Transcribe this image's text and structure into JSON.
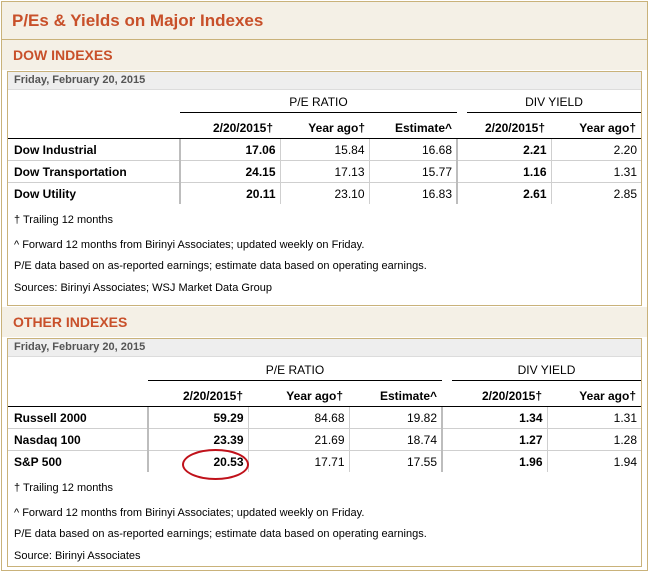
{
  "title": "P/Es & Yields on Major Indexes",
  "dow": {
    "heading": "DOW INDEXES",
    "date": "Friday, February 20, 2015",
    "group_pe": "P/E RATIO",
    "group_div": "DIV YIELD",
    "columns": [
      "2/20/2015†",
      "Year ago†",
      "Estimate^",
      "2/20/2015†",
      "Year ago†"
    ],
    "rows": [
      {
        "name": "Dow Industrial",
        "values": [
          "17.06",
          "15.84",
          "16.68",
          "2.21",
          "2.20"
        ]
      },
      {
        "name": "Dow Transportation",
        "values": [
          "24.15",
          "17.13",
          "15.77",
          "1.16",
          "1.31"
        ]
      },
      {
        "name": "Dow Utility",
        "values": [
          "20.11",
          "23.10",
          "16.83",
          "2.61",
          "2.85"
        ]
      }
    ],
    "notes": [
      "† Trailing 12 months",
      "^ Forward 12 months from Birinyi Associates; updated weekly on Friday.",
      "P/E data based on as-reported earnings; estimate data based on operating earnings.",
      "Sources: Birinyi Associates; WSJ Market Data Group"
    ]
  },
  "other": {
    "heading": "OTHER INDEXES",
    "date": "Friday, February 20, 2015",
    "group_pe": "P/E RATIO",
    "group_div": "DIV YIELD",
    "columns": [
      "2/20/2015†",
      "Year ago†",
      "Estimate^",
      "2/20/2015†",
      "Year ago†"
    ],
    "rows": [
      {
        "name": "Russell 2000",
        "values": [
          "59.29",
          "84.68",
          "19.82",
          "1.34",
          "1.31"
        ]
      },
      {
        "name": "Nasdaq 100",
        "values": [
          "23.39",
          "21.69",
          "18.74",
          "1.27",
          "1.28"
        ]
      },
      {
        "name": "S&P 500",
        "values": [
          "20.53",
          "17.71",
          "17.55",
          "1.96",
          "1.94"
        ]
      }
    ],
    "notes": [
      "† Trailing 12 months",
      "^ Forward 12 months from Birinyi Associates; updated weekly on Friday.",
      "P/E data based on as-reported earnings; estimate data based on operating earnings.",
      "Source: Birinyi Associates"
    ]
  },
  "highlight_color": "#c0111a",
  "accent_color": "#c8502a"
}
